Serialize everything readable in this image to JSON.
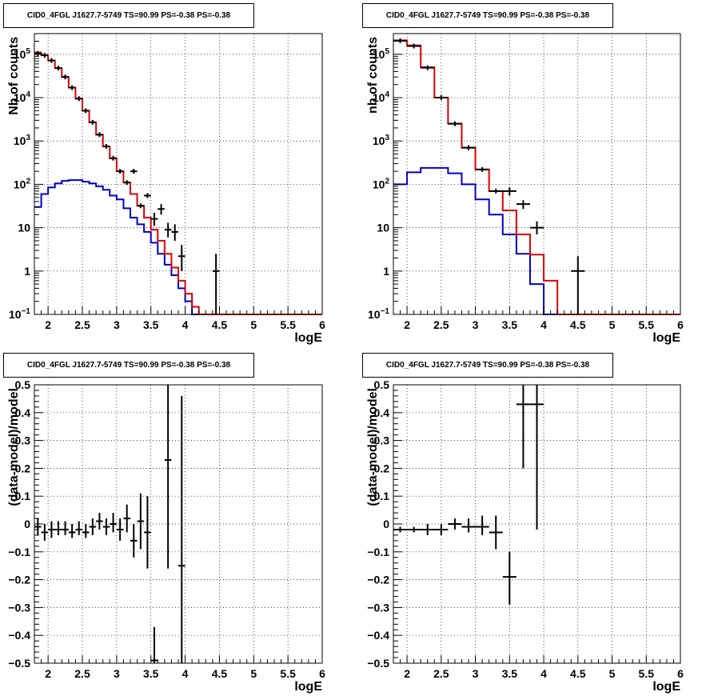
{
  "chart_data": [
    {
      "id": "p1",
      "type": "line",
      "title": "CID0_4FGL J1627.7-5749 TS=90.99 PS=-0.38 PS=-0.38",
      "xlabel": "logE",
      "ylabel": "Nb of counts",
      "xlim": [
        1.8,
        6.0
      ],
      "ylim": [
        0.1,
        300000
      ],
      "yscale": "log",
      "grid": true,
      "xticks": [
        2,
        2.5,
        3,
        3.5,
        4,
        4.5,
        5,
        5.5,
        6
      ],
      "xticklabels": [
        "2",
        "2.5",
        "3",
        "3.5",
        "4",
        "4.5",
        "5",
        "5.5",
        "6"
      ],
      "yticks": [
        0.1,
        1,
        10,
        100,
        1000,
        10000,
        100000
      ],
      "yticklabels": [
        {
          "base": "10",
          "exp": "−1"
        },
        {
          "base": "1",
          "exp": ""
        },
        {
          "base": "10",
          "exp": ""
        },
        {
          "base": "10",
          "exp": "2"
        },
        {
          "base": "10",
          "exp": "3"
        },
        {
          "base": "10",
          "exp": "4"
        },
        {
          "base": "10",
          "exp": "5"
        }
      ],
      "bin_edges": [
        1.8,
        1.9,
        2.0,
        2.1,
        2.2,
        2.3,
        2.4,
        2.5,
        2.6,
        2.7,
        2.8,
        2.9,
        3.0,
        3.1,
        3.2,
        3.3,
        3.4,
        3.5,
        3.6,
        3.7,
        3.8,
        3.9,
        4.0,
        4.1,
        4.2,
        4.3,
        4.4,
        4.5,
        4.6,
        4.7,
        4.8,
        4.9,
        5.0,
        5.1,
        5.2,
        5.3,
        5.4,
        5.5,
        5.6,
        5.7,
        5.8,
        5.9,
        6.0
      ],
      "series": [
        {
          "color": "#0000cc",
          "values": [
            30,
            60,
            85,
            105,
            120,
            125,
            125,
            115,
            105,
            90,
            75,
            55,
            45,
            28,
            17,
            12,
            8,
            4.5,
            2.5,
            1.4,
            0.8,
            0.4,
            0.2,
            0.1,
            0.1,
            0.1,
            0.1,
            0.1,
            0.1,
            0.1,
            0.1,
            0.1,
            0.1,
            0.1,
            0.1,
            0.1,
            0.1,
            0.1,
            0.1,
            0.1,
            0.1,
            0.1
          ]
        },
        {
          "color": "#dd0000",
          "values": [
            110000,
            95000,
            72000,
            48000,
            30000,
            17000,
            9500,
            5000,
            2700,
            1400,
            750,
            400,
            200,
            110,
            60,
            32,
            17,
            9,
            5,
            2.5,
            1.2,
            0.6,
            0.3,
            0.15,
            0.1,
            0.1,
            0.1,
            0.1,
            0.1,
            0.1,
            0.1,
            0.1,
            0.1,
            0.1,
            0.1,
            0.1,
            0.1,
            0.1,
            0.1,
            0.1,
            0.1,
            0.1
          ]
        }
      ],
      "points": [
        {
          "x": 1.85,
          "y": 105000
        },
        {
          "x": 1.95,
          "y": 95000
        },
        {
          "x": 2.05,
          "y": 72000
        },
        {
          "x": 2.15,
          "y": 48000
        },
        {
          "x": 2.25,
          "y": 30000
        },
        {
          "x": 2.35,
          "y": 17000
        },
        {
          "x": 2.45,
          "y": 9500
        },
        {
          "x": 2.55,
          "y": 5000
        },
        {
          "x": 2.65,
          "y": 2700
        },
        {
          "x": 2.75,
          "y": 1400
        },
        {
          "x": 2.85,
          "y": 750
        },
        {
          "x": 2.95,
          "y": 400
        },
        {
          "x": 3.05,
          "y": 200
        },
        {
          "x": 3.15,
          "y": 110
        },
        {
          "x": 3.25,
          "y": 200
        },
        {
          "x": 3.35,
          "y": 32
        },
        {
          "x": 3.45,
          "y": 55
        },
        {
          "x": 3.55,
          "y": 16,
          "lo": 11,
          "hi": 22
        },
        {
          "x": 3.65,
          "y": 27,
          "lo": 20,
          "hi": 35
        },
        {
          "x": 3.75,
          "y": 9,
          "lo": 6,
          "hi": 13
        },
        {
          "x": 3.85,
          "y": 8,
          "lo": 5,
          "hi": 12
        },
        {
          "x": 3.95,
          "y": 2.2,
          "lo": 1,
          "hi": 4
        },
        {
          "x": 4.45,
          "y": 1,
          "lo": 0.1,
          "hi": 2.5
        }
      ]
    },
    {
      "id": "p2",
      "type": "line",
      "title": "CID0_4FGL J1627.7-5749 TS=90.99 PS=-0.38 PS=-0.38",
      "xlabel": "logE",
      "ylabel": "nb of counts",
      "xlim": [
        1.8,
        6.0
      ],
      "ylim": [
        0.1,
        300000
      ],
      "yscale": "log",
      "grid": true,
      "xticks": [
        2,
        2.5,
        3,
        3.5,
        4,
        4.5,
        5,
        5.5,
        6
      ],
      "xticklabels": [
        "2",
        "2.5",
        "3",
        "3.5",
        "4",
        "4.5",
        "5",
        "5.5",
        "6"
      ],
      "yticks": [
        0.1,
        1,
        10,
        100,
        1000,
        10000,
        100000
      ],
      "yticklabels": [
        {
          "base": "10",
          "exp": "−1"
        },
        {
          "base": "1",
          "exp": ""
        },
        {
          "base": "10",
          "exp": ""
        },
        {
          "base": "10",
          "exp": "2"
        },
        {
          "base": "10",
          "exp": "3"
        },
        {
          "base": "10",
          "exp": "4"
        },
        {
          "base": "10",
          "exp": "5"
        }
      ],
      "bin_edges": [
        1.8,
        2.0,
        2.2,
        2.4,
        2.6,
        2.8,
        3.0,
        3.2,
        3.4,
        3.6,
        3.8,
        4.0,
        4.2,
        4.4,
        4.6,
        4.8,
        5.0,
        5.2,
        5.4,
        5.6,
        5.8,
        6.0
      ],
      "series": [
        {
          "color": "#0000cc",
          "values": [
            100,
            190,
            240,
            240,
            180,
            100,
            45,
            20,
            7,
            2.5,
            0.5,
            0.1,
            0.1,
            0.1,
            0.1,
            0.1,
            0.1,
            0.1,
            0.1,
            0.1,
            0.1
          ]
        },
        {
          "color": "#dd0000",
          "values": [
            210000,
            160000,
            50000,
            10000,
            2500,
            700,
            220,
            70,
            25,
            7,
            2.4,
            0.6,
            0.1,
            0.1,
            0.1,
            0.1,
            0.1,
            0.1,
            0.1,
            0.1,
            0.1
          ]
        }
      ],
      "points": [
        {
          "x": 1.9,
          "y": 205000
        },
        {
          "x": 2.1,
          "y": 155000
        },
        {
          "x": 2.3,
          "y": 49000
        },
        {
          "x": 2.5,
          "y": 10000
        },
        {
          "x": 2.7,
          "y": 2500
        },
        {
          "x": 2.9,
          "y": 700
        },
        {
          "x": 3.1,
          "y": 220
        },
        {
          "x": 3.3,
          "y": 70
        },
        {
          "x": 3.5,
          "y": 70,
          "lo": 55,
          "hi": 85
        },
        {
          "x": 3.7,
          "y": 35,
          "lo": 27,
          "hi": 43
        },
        {
          "x": 3.9,
          "y": 10,
          "lo": 7,
          "hi": 14
        },
        {
          "x": 4.5,
          "y": 1,
          "lo": 0.1,
          "hi": 2.2
        }
      ]
    },
    {
      "id": "p3",
      "type": "scatter",
      "title": "CID0_4FGL J1627.7-5749 TS=90.99 PS=-0.38 PS=-0.38",
      "xlabel": "logE",
      "ylabel": "(data-model)/model",
      "xlim": [
        1.8,
        6.0
      ],
      "ylim": [
        -0.5,
        0.5
      ],
      "grid": true,
      "xticks": [
        2,
        2.5,
        3,
        3.5,
        4,
        4.5,
        5,
        5.5,
        6
      ],
      "xticklabels": [
        "2",
        "2.5",
        "3",
        "3.5",
        "4",
        "4.5",
        "5",
        "5.5",
        "6"
      ],
      "yticks": [
        -0.5,
        -0.4,
        -0.3,
        -0.2,
        -0.1,
        0,
        0.1,
        0.2,
        0.3,
        0.4,
        0.5
      ],
      "yticklabels": [
        "−0.5",
        "−0.4",
        "−0.3",
        "−0.2",
        "−0.1",
        "0",
        "0.1",
        "0.2",
        "0.3",
        "0.4",
        "0.5"
      ],
      "xerr": 0.05,
      "points": [
        {
          "x": 1.85,
          "y": -0.01,
          "lo": -0.04,
          "hi": 0.02
        },
        {
          "x": 1.95,
          "y": -0.03,
          "lo": -0.06,
          "hi": 0.0
        },
        {
          "x": 2.05,
          "y": -0.02,
          "lo": -0.05,
          "hi": 0.01
        },
        {
          "x": 2.15,
          "y": -0.02,
          "lo": -0.04,
          "hi": 0.01
        },
        {
          "x": 2.25,
          "y": -0.02,
          "lo": -0.04,
          "hi": 0.01
        },
        {
          "x": 2.35,
          "y": -0.03,
          "lo": -0.05,
          "hi": 0.0
        },
        {
          "x": 2.45,
          "y": -0.02,
          "lo": -0.04,
          "hi": 0.01
        },
        {
          "x": 2.55,
          "y": -0.03,
          "lo": -0.05,
          "hi": 0.0
        },
        {
          "x": 2.65,
          "y": -0.01,
          "lo": -0.04,
          "hi": 0.02
        },
        {
          "x": 2.75,
          "y": 0.01,
          "lo": -0.02,
          "hi": 0.04
        },
        {
          "x": 2.85,
          "y": -0.01,
          "lo": -0.04,
          "hi": 0.02
        },
        {
          "x": 2.95,
          "y": 0.0,
          "lo": -0.03,
          "hi": 0.04
        },
        {
          "x": 3.05,
          "y": -0.02,
          "lo": -0.06,
          "hi": 0.02
        },
        {
          "x": 3.15,
          "y": 0.02,
          "lo": -0.03,
          "hi": 0.07
        },
        {
          "x": 3.25,
          "y": -0.06,
          "lo": -0.12,
          "hi": 0.0
        },
        {
          "x": 3.35,
          "y": 0.01,
          "lo": -0.09,
          "hi": 0.11
        },
        {
          "x": 3.45,
          "y": -0.03,
          "lo": -0.16,
          "hi": 0.1
        },
        {
          "x": 3.55,
          "y": -0.49,
          "lo": -0.6,
          "hi": -0.37
        },
        {
          "x": 3.75,
          "y": 0.23,
          "lo": -0.16,
          "hi": 0.62
        },
        {
          "x": 3.95,
          "y": -0.15,
          "lo": -0.75,
          "hi": 0.46
        }
      ]
    },
    {
      "id": "p4",
      "type": "scatter",
      "title": "CID0_4FGL J1627.7-5749 TS=90.99 PS=-0.38 PS=-0.38",
      "xlabel": "logE",
      "ylabel": "(data-model)/model",
      "xlim": [
        1.8,
        6.0
      ],
      "ylim": [
        -0.5,
        0.5
      ],
      "grid": true,
      "xticks": [
        2,
        2.5,
        3,
        3.5,
        4,
        4.5,
        5,
        5.5,
        6
      ],
      "xticklabels": [
        "2",
        "2.5",
        "3",
        "3.5",
        "4",
        "4.5",
        "5",
        "5.5",
        "6"
      ],
      "yticks": [
        -0.5,
        -0.4,
        -0.3,
        -0.2,
        -0.1,
        0,
        0.1,
        0.2,
        0.3,
        0.4,
        0.5
      ],
      "yticklabels": [
        "−0.5",
        "−0.4",
        "−0.3",
        "−0.2",
        "−0.1",
        "0",
        "0.1",
        "0.2",
        "0.3",
        "0.4",
        "0.5"
      ],
      "xerr": 0.1,
      "points": [
        {
          "x": 1.9,
          "y": -0.02,
          "lo": -0.03,
          "hi": -0.01
        },
        {
          "x": 2.1,
          "y": -0.02,
          "lo": -0.03,
          "hi": -0.01
        },
        {
          "x": 2.3,
          "y": -0.02,
          "lo": -0.04,
          "hi": 0.0
        },
        {
          "x": 2.5,
          "y": -0.02,
          "lo": -0.04,
          "hi": 0.0
        },
        {
          "x": 2.7,
          "y": 0.0,
          "lo": -0.02,
          "hi": 0.02
        },
        {
          "x": 2.9,
          "y": -0.01,
          "lo": -0.03,
          "hi": 0.02
        },
        {
          "x": 3.1,
          "y": -0.01,
          "lo": -0.04,
          "hi": 0.03
        },
        {
          "x": 3.3,
          "y": -0.03,
          "lo": -0.09,
          "hi": 0.03
        },
        {
          "x": 3.5,
          "y": -0.19,
          "lo": -0.29,
          "hi": -0.1
        },
        {
          "x": 3.7,
          "y": 0.43,
          "lo": 0.2,
          "hi": 0.6
        },
        {
          "x": 3.9,
          "y": 0.43,
          "lo": -0.02,
          "hi": 0.9
        }
      ]
    }
  ]
}
